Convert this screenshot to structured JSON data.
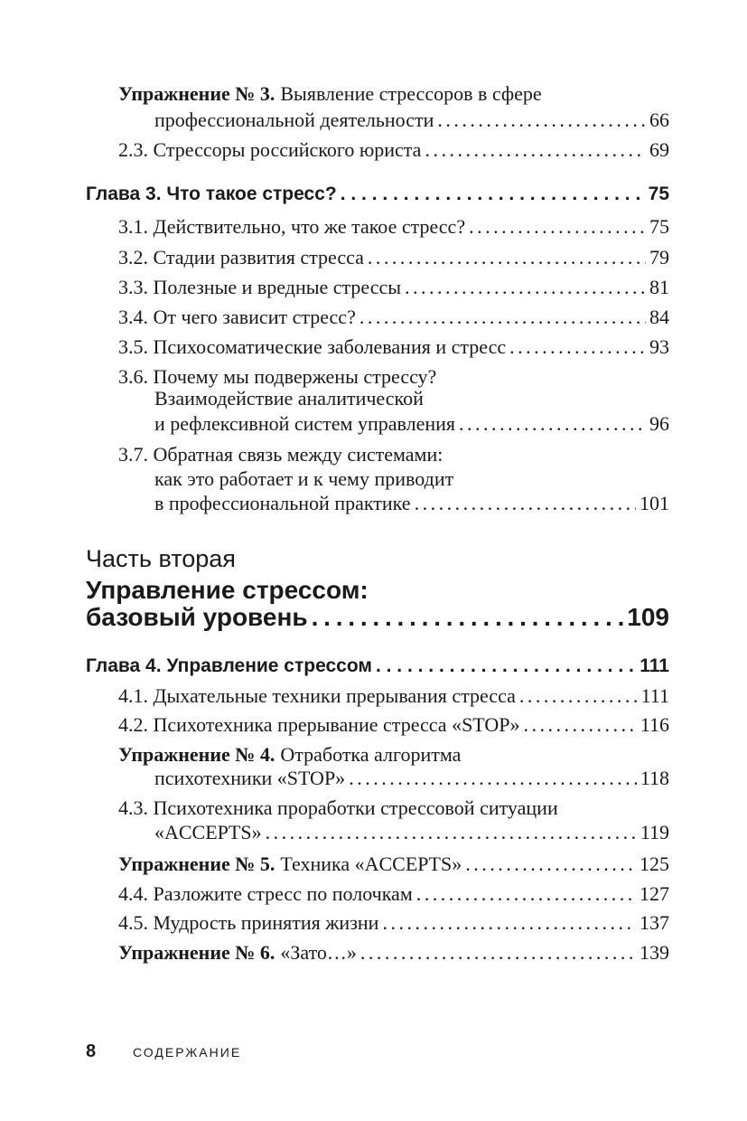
{
  "toc": {
    "e1": {
      "bold": "Упражнение № 3.",
      "l1": "Выявление стрессоров в сфере",
      "l2": "профессиональной деятельности",
      "page": "66"
    },
    "e2": {
      "text": "2.3. Стрессоры российского юриста",
      "page": "69"
    },
    "ch3": {
      "text": "Глава 3. Что такое стресс?",
      "page": "75"
    },
    "s31": {
      "text": "3.1. Действительно, что же такое стресс?",
      "page": "75"
    },
    "s32": {
      "text": "3.2. Стадии развития стресса",
      "page": "79"
    },
    "s33": {
      "text": "3.3. Полезные и вредные стрессы",
      "page": "81"
    },
    "s34": {
      "text": "3.4. От чего зависит стресс?",
      "page": "84"
    },
    "s35": {
      "text": "3.5. Психосоматические заболевания и стресс",
      "page": "93"
    },
    "s36": {
      "l1": "3.6. Почему мы подвержены стрессу?",
      "l2": "Взаимодействие аналитической",
      "l3": "и рефлексивной систем управления",
      "page": "96"
    },
    "s37": {
      "l1": "3.7. Обратная связь между системами:",
      "l2": "как это работает и к чему приводит",
      "l3": "в профессиональной практике",
      "page": "101"
    },
    "part2": {
      "label": "Часть вторая",
      "l1": "Управление стрессом:",
      "l2": "базовый уровень",
      "page": "109"
    },
    "ch4": {
      "text": "Глава 4. Управление стрессом",
      "page": "111"
    },
    "s41": {
      "text": "4.1. Дыхательные техники прерывания стресса",
      "page": "111"
    },
    "s42": {
      "text": "4.2. Психотехника прерывание стресса «STOP»",
      "page": "116"
    },
    "ex4": {
      "bold": "Упражнение № 4.",
      "l1": "Отработка алгоритма",
      "l2": "психотехники «STOP»",
      "page": "118"
    },
    "s43": {
      "l1": "4.3. Психотехника проработки стрессовой ситуации",
      "l2": "«ACCEPTS»",
      "page": "119"
    },
    "ex5": {
      "bold": "Упражнение № 5.",
      "text": "Техника «ACCEPTS»",
      "page": "125"
    },
    "s44": {
      "text": "4.4. Разложите стресс по полочкам",
      "page": "127"
    },
    "s45": {
      "text": "4.5. Мудрость принятия жизни",
      "page": "137"
    },
    "ex6": {
      "bold": "Упражнение № 6.",
      "text": "«Зато…»",
      "page": "139"
    }
  },
  "footer": {
    "page_number": "8",
    "running_title": "СОДЕРЖАНИЕ"
  }
}
